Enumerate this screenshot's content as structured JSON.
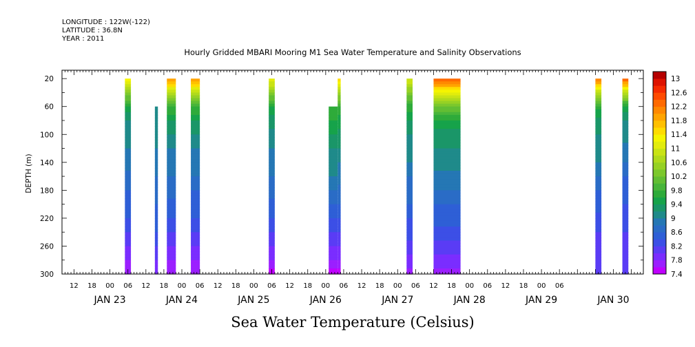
{
  "header": {
    "longitude": "LONGITUDE : 122W(-122)",
    "latitude": "LATITUDE : 36.8N",
    "year": "YEAR : 2011"
  },
  "chart_data": {
    "type": "heatmap",
    "title": "Hourly Gridded MBARI Mooring M1 Sea Water Temperature and Salinity Observations",
    "xlabel": "",
    "ylabel": "DEPTH (m)",
    "colorbar_label": "Sea Water Temperature (Celsius)",
    "time_start": "2011-01-22T08:00",
    "time_end": "2011-01-30T10:00",
    "y_range": [
      300,
      0
    ],
    "ylim": [
      300,
      8
    ],
    "y_ticks": [
      20,
      60,
      100,
      140,
      180,
      220,
      260,
      300
    ],
    "y_tick_labels": [
      "20",
      "60",
      "100",
      "140",
      "180",
      "220",
      "260",
      "300"
    ],
    "x_hour_labels": [
      {
        "t": "2011-01-22T12:00",
        "label": "12"
      },
      {
        "t": "2011-01-22T18:00",
        "label": "18"
      },
      {
        "t": "2011-01-23T00:00",
        "label": "00"
      },
      {
        "t": "2011-01-23T06:00",
        "label": "06"
      },
      {
        "t": "2011-01-23T12:00",
        "label": "12"
      },
      {
        "t": "2011-01-23T18:00",
        "label": "18"
      },
      {
        "t": "2011-01-24T00:00",
        "label": "00"
      },
      {
        "t": "2011-01-24T06:00",
        "label": "06"
      },
      {
        "t": "2011-01-24T12:00",
        "label": "12"
      },
      {
        "t": "2011-01-24T18:00",
        "label": "18"
      },
      {
        "t": "2011-01-25T00:00",
        "label": "00"
      },
      {
        "t": "2011-01-25T06:00",
        "label": "06"
      },
      {
        "t": "2011-01-25T12:00",
        "label": "12"
      },
      {
        "t": "2011-01-25T18:00",
        "label": "18"
      },
      {
        "t": "2011-01-26T00:00",
        "label": "00"
      },
      {
        "t": "2011-01-26T06:00",
        "label": "06"
      },
      {
        "t": "2011-01-26T12:00",
        "label": "12"
      },
      {
        "t": "2011-01-26T18:00",
        "label": "18"
      },
      {
        "t": "2011-01-27T00:00",
        "label": "00"
      },
      {
        "t": "2011-01-27T06:00",
        "label": "06"
      },
      {
        "t": "2011-01-27T12:00",
        "label": "12"
      },
      {
        "t": "2011-01-27T18:00",
        "label": "18"
      },
      {
        "t": "2011-01-28T00:00",
        "label": "00"
      },
      {
        "t": "2011-01-28T06:00",
        "label": "06"
      },
      {
        "t": "2011-01-28T12:00",
        "label": "12"
      },
      {
        "t": "2011-01-28T18:00",
        "label": "18"
      },
      {
        "t": "2011-01-29T00:00",
        "label": "00"
      },
      {
        "t": "2011-01-29T06:00",
        "label": "06"
      }
    ],
    "x_day_labels": [
      {
        "t": "2011-01-23T00:00",
        "label": "JAN 23"
      },
      {
        "t": "2011-01-24T00:00",
        "label": "JAN 24"
      },
      {
        "t": "2011-01-25T00:00",
        "label": "JAN 25"
      },
      {
        "t": "2011-01-26T00:00",
        "label": "JAN 26"
      },
      {
        "t": "2011-01-27T00:00",
        "label": "JAN 27"
      },
      {
        "t": "2011-01-28T00:00",
        "label": "JAN 28"
      },
      {
        "t": "2011-01-29T00:00",
        "label": "JAN 29"
      },
      {
        "t": "2011-01-30T00:00",
        "label": "JAN 30"
      }
    ],
    "colorbar": {
      "levels": [
        7.4,
        7.6,
        7.8,
        8.0,
        8.2,
        8.4,
        8.6,
        8.8,
        9.0,
        9.2,
        9.4,
        9.6,
        9.8,
        10.0,
        10.2,
        10.4,
        10.6,
        10.8,
        11.0,
        11.2,
        11.4,
        11.6,
        11.8,
        12.0,
        12.2,
        12.4,
        12.6,
        12.8,
        13.0,
        13.2
      ],
      "colors": [
        "#bf00ff",
        "#9b1fff",
        "#7a2dff",
        "#5a3cf5",
        "#3c4fe6",
        "#2e5fd6",
        "#2a6cc6",
        "#2577b4",
        "#1f8a8a",
        "#1a9668",
        "#16a34a",
        "#2eab3a",
        "#48b53a",
        "#62be33",
        "#7cc82c",
        "#96d124",
        "#b0da1c",
        "#c9e314",
        "#e2ec0c",
        "#f5f500",
        "#ffdc00",
        "#ffc000",
        "#ffa400",
        "#ff8800",
        "#ff6a00",
        "#ff4a00",
        "#f52a00",
        "#dd1200",
        "#b50000"
      ],
      "tick_labels": [
        "7.4",
        "7.8",
        "8.2",
        "8.6",
        "9",
        "9.4",
        "9.8",
        "10.2",
        "10.6",
        "11",
        "11.4",
        "11.8",
        "12.2",
        "12.6",
        "13"
      ]
    },
    "profile_depths": [
      20,
      40,
      60,
      80,
      100,
      120,
      140,
      160,
      180,
      200,
      220,
      240,
      260,
      280,
      300
    ],
    "segments": [
      {
        "start": "2011-01-23T05:00",
        "end": "2011-01-23T07:00",
        "top": 20,
        "profile": [
          11.5,
          10.4,
          9.6,
          9.2,
          9.1,
          9.0,
          8.9,
          8.7,
          8.6,
          8.5,
          8.4,
          8.2,
          8.0,
          7.8,
          7.6
        ]
      },
      {
        "start": "2011-01-23T15:00",
        "end": "2011-01-23T16:00",
        "top": 60,
        "profile": [
          9.2,
          9.2,
          9.2,
          9.1,
          9.0,
          9.0,
          8.9,
          8.8,
          8.7,
          8.6,
          8.5,
          8.4,
          8.2,
          8.0,
          7.8
        ]
      },
      {
        "start": "2011-01-23T19:00",
        "end": "2011-01-23T22:00",
        "top": 20,
        "profile": [
          12.0,
          10.8,
          9.8,
          9.4,
          9.2,
          9.0,
          8.9,
          8.8,
          8.7,
          8.5,
          8.4,
          8.2,
          8.0,
          7.8,
          7.6
        ]
      },
      {
        "start": "2011-01-24T03:00",
        "end": "2011-01-24T06:00",
        "top": 20,
        "profile": [
          12.1,
          10.8,
          9.8,
          9.4,
          9.2,
          9.0,
          8.9,
          8.8,
          8.6,
          8.5,
          8.4,
          8.2,
          8.0,
          7.8,
          7.6
        ]
      },
      {
        "start": "2011-01-25T05:00",
        "end": "2011-01-25T07:00",
        "top": 20,
        "profile": [
          11.2,
          10.4,
          9.6,
          9.3,
          9.1,
          9.0,
          8.9,
          8.8,
          8.7,
          8.5,
          8.4,
          8.2,
          8.0,
          7.8,
          7.5
        ]
      },
      {
        "start": "2011-01-26T01:00",
        "end": "2011-01-26T04:00",
        "top": 60,
        "profile": [
          9.8,
          9.8,
          9.8,
          9.6,
          9.4,
          9.2,
          9.1,
          9.0,
          8.8,
          8.6,
          8.4,
          8.2,
          8.0,
          7.8,
          7.5
        ]
      },
      {
        "start": "2011-01-26T04:00",
        "end": "2011-01-26T05:00",
        "top": 20,
        "profile": [
          11.6,
          10.6,
          9.8,
          9.5,
          9.3,
          9.2,
          9.0,
          8.9,
          8.7,
          8.6,
          8.4,
          8.2,
          8.0,
          7.8,
          7.5
        ]
      },
      {
        "start": "2011-01-27T03:00",
        "end": "2011-01-27T05:00",
        "top": 20,
        "profile": [
          11.0,
          10.4,
          9.7,
          9.4,
          9.2,
          9.1,
          9.0,
          8.8,
          8.7,
          8.6,
          8.4,
          8.3,
          8.1,
          7.9,
          7.7
        ]
      },
      {
        "start": "2011-01-27T12:00",
        "end": "2011-01-27T21:00",
        "top": 20,
        "profile": [
          12.4,
          11.2,
          10.2,
          9.6,
          9.3,
          9.2,
          9.1,
          8.9,
          8.8,
          8.6,
          8.5,
          8.3,
          8.1,
          7.9,
          7.7
        ]
      },
      {
        "start": "2011-01-29T18:00",
        "end": "2011-01-29T20:00",
        "top": 20,
        "profile": [
          12.3,
          10.8,
          9.7,
          9.3,
          9.2,
          9.1,
          9.0,
          8.8,
          8.6,
          8.5,
          8.3,
          8.2,
          8.1,
          8.0,
          8.0
        ]
      },
      {
        "start": "2011-01-30T03:00",
        "end": "2011-01-30T05:00",
        "top": 20,
        "profile": [
          12.4,
          10.8,
          9.6,
          9.2,
          9.1,
          8.9,
          8.8,
          8.6,
          8.5,
          8.4,
          8.3,
          8.2,
          8.1,
          8.0,
          8.0
        ]
      }
    ]
  }
}
